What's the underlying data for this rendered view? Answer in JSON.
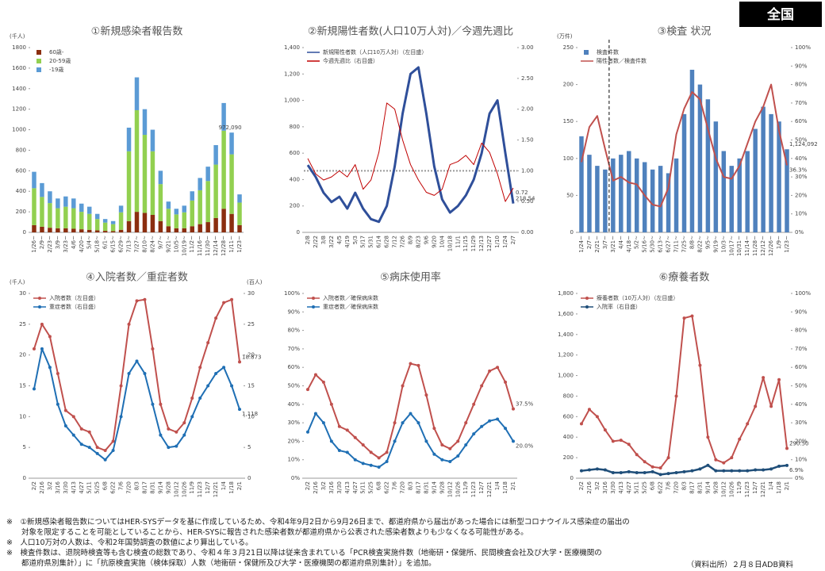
{
  "badge": "全国",
  "chart_data": [
    {
      "type": "bar",
      "stacked": true,
      "title": "①新規感染者報告数",
      "y_unit": "(千人)",
      "categories": [
        "1/26~",
        "2/9~",
        "2/23~",
        "3/9~",
        "3/23~",
        "4/6~",
        "4/20~",
        "5/4~",
        "5/18~",
        "6/1~",
        "6/15~",
        "6/29~",
        "7/13~",
        "7/27~",
        "8/10~",
        "8/24~",
        "9/7~",
        "9/21~",
        "10/5~",
        "10/19~",
        "11/2~",
        "11/16~",
        "11/30~",
        "12/14~",
        "12/28~",
        "1/11~",
        "1/23~"
      ],
      "series": [
        {
          "name": "60歳-",
          "color": "#8b2e0f",
          "values": [
            70,
            55,
            45,
            40,
            40,
            35,
            30,
            25,
            20,
            15,
            12,
            25,
            110,
            200,
            190,
            170,
            110,
            60,
            40,
            40,
            60,
            80,
            100,
            140,
            230,
            180,
            70
          ]
        },
        {
          "name": "20-59歳",
          "color": "#92d050",
          "values": [
            360,
            290,
            240,
            195,
            210,
            200,
            170,
            155,
            110,
            80,
            68,
            170,
            680,
            990,
            760,
            620,
            360,
            170,
            135,
            155,
            250,
            330,
            400,
            520,
            760,
            580,
            220
          ]
        },
        {
          "name": "-19歳",
          "color": "#5b9bd5",
          "values": [
            160,
            135,
            115,
            95,
            100,
            95,
            80,
            70,
            50,
            35,
            30,
            65,
            230,
            320,
            250,
            210,
            130,
            70,
            55,
            65,
            90,
            120,
            140,
            190,
            270,
            212,
            80
          ]
        }
      ],
      "ylim": [
        0,
        1800
      ],
      "yticks": [
        0,
        200,
        400,
        600,
        800,
        1000,
        1200,
        1400,
        1600,
        1800
      ],
      "annotations": [
        "972,090"
      ]
    },
    {
      "type": "line",
      "title": "②新規陽性者数(人口10万人対)／今週先週比",
      "categories": [
        "2/8",
        "2/22",
        "3/8",
        "3/22",
        "4/5",
        "4/19",
        "5/3",
        "5/17",
        "5/31",
        "6/14",
        "6/28",
        "7/12",
        "7/26",
        "8/9",
        "8/23",
        "9/6",
        "9/20",
        "10/4",
        "10/18",
        "11/1",
        "11/15",
        "11/29",
        "12/13",
        "12/27",
        "1/10",
        "1/24",
        "2/7"
      ],
      "series": [
        {
          "name": "新規陽性者数（人口10万人対）（左目盛）",
          "color": "#2f4f9a",
          "width": 3,
          "values": [
            510,
            420,
            300,
            230,
            270,
            180,
            300,
            180,
            100,
            80,
            200,
            500,
            900,
            1200,
            1250,
            900,
            500,
            250,
            150,
            200,
            280,
            400,
            600,
            900,
            1000,
            600,
            218.54
          ]
        },
        {
          "name": "今週先週比（右目盛）",
          "color": "#c00000",
          "width": 1,
          "axis": "y2",
          "values": [
            1.2,
            0.95,
            0.85,
            0.9,
            1.0,
            0.9,
            1.1,
            0.7,
            0.85,
            1.3,
            2.1,
            2.0,
            1.5,
            1.1,
            0.85,
            0.65,
            0.6,
            0.7,
            1.1,
            1.15,
            1.25,
            1.1,
            1.45,
            1.3,
            0.95,
            0.5,
            0.72
          ]
        }
      ],
      "ylim": [
        0,
        1400
      ],
      "yticks": [
        0,
        200,
        400,
        600,
        800,
        {
          "value": 1000,
          "label": "1,000"
        },
        {
          "value": 1200,
          "label": "1,200"
        },
        {
          "value": 1400,
          "label": "1,400"
        }
      ],
      "y2lim": [
        0,
        3
      ],
      "y2ticks": [
        {
          "value": 0,
          "label": "0.00"
        },
        {
          "value": 0.5,
          "label": "0.50"
        },
        {
          "value": 1,
          "label": "1.00"
        },
        {
          "value": 1.5,
          "label": "1.50"
        },
        {
          "value": 2,
          "label": "2.00"
        },
        {
          "value": 2.5,
          "label": "2.50"
        },
        {
          "value": 3,
          "label": "3.00"
        }
      ],
      "hline_y2": 1,
      "annotations": [
        "218.54",
        "0.72"
      ]
    },
    {
      "type": "bar",
      "title": "③検査 状況",
      "y_unit": "(万件)",
      "categories": [
        "1/24~",
        "2/7~",
        "2/21~",
        "3/7~",
        "3/21~",
        "4/4~",
        "4/18~",
        "5/2~",
        "5/16~",
        "5/30~",
        "6/13~",
        "6/27~",
        "7/11~",
        "7/25~",
        "8/8~",
        "8/22~",
        "9/5~",
        "9/19~",
        "10/3~",
        "10/17~",
        "10/31~",
        "11/14~",
        "11/28~",
        "12/12~",
        "12/26~",
        "1/9~",
        "1/23~"
      ],
      "series": [
        {
          "name": "検査件数",
          "color": "#4f81bd",
          "values": [
            130,
            105,
            90,
            85,
            100,
            105,
            110,
            100,
            95,
            85,
            90,
            80,
            100,
            160,
            220,
            200,
            180,
            150,
            110,
            90,
            100,
            110,
            140,
            170,
            160,
            150,
            112.4092
          ]
        },
        {
          "name": "陽性者数／検査件数",
          "type": "line",
          "color": "#c0504d",
          "width": 2,
          "axis": "y2",
          "values": [
            38,
            57,
            63,
            45,
            28,
            30,
            27,
            26,
            20,
            15,
            14,
            24,
            53,
            67,
            76,
            72,
            56,
            40,
            30,
            29,
            36,
            48,
            60,
            68,
            80,
            55,
            36.3
          ]
        }
      ],
      "ylim": [
        0,
        250
      ],
      "yticks": [
        0,
        50,
        100,
        150,
        200,
        250
      ],
      "y2lim": [
        0,
        100
      ],
      "y2ticks": [
        {
          "value": 0,
          "label": "0%"
        },
        {
          "value": 10,
          "label": "10%"
        },
        {
          "value": 20,
          "label": "20%"
        },
        {
          "value": 30,
          "label": "30%"
        },
        {
          "value": 40,
          "label": "40%"
        },
        {
          "value": 50,
          "label": "50%"
        },
        {
          "value": 60,
          "label": "60%"
        },
        {
          "value": 70,
          "label": "70%"
        },
        {
          "value": 80,
          "label": "80%"
        },
        {
          "value": 90,
          "label": "90%"
        },
        {
          "value": 100,
          "label": "100%"
        }
      ],
      "vline_at": "3/21~",
      "annotations": [
        "1,124,092",
        "36.3%"
      ]
    },
    {
      "type": "line",
      "markers": true,
      "title": "④入院者数／重症者数",
      "y_unit": "(千人)",
      "y2_unit": "(百人)",
      "categories": [
        "2/2",
        "2/16",
        "3/2",
        "3/16",
        "3/30",
        "4/13",
        "4/27",
        "5/11",
        "5/25",
        "6/8",
        "6/22",
        "7/6",
        "7/20",
        "8/3",
        "8/17",
        "8/31",
        "9/14",
        "9/28",
        "10/12",
        "10/26",
        "11/9",
        "11/23",
        "12/7",
        "12/21",
        "1/4",
        "1/18",
        "2/1"
      ],
      "series": [
        {
          "name": "入院者数（左目盛）",
          "color": "#c0504d",
          "width": 2,
          "values": [
            21,
            25,
            23,
            17,
            11,
            10,
            8,
            7.5,
            5,
            4.5,
            6,
            15,
            25,
            28.8,
            29,
            21,
            12,
            8,
            7.5,
            9,
            13,
            18,
            22,
            26,
            28.5,
            29,
            18.873
          ]
        },
        {
          "name": "重症者数（右目盛）",
          "color": "#1f6fb4",
          "width": 2,
          "axis": "y2",
          "values": [
            14.5,
            21,
            18,
            12,
            8.5,
            7,
            5.5,
            5,
            4,
            3,
            4.5,
            10,
            17,
            19,
            17,
            12,
            7,
            5,
            5.2,
            7,
            10,
            13,
            15,
            17,
            18,
            15,
            11.18
          ]
        }
      ],
      "ylim": [
        0,
        30
      ],
      "yticks": [
        0,
        5,
        10,
        15,
        20,
        25,
        30
      ],
      "y2lim": [
        0,
        30
      ],
      "y2ticks": [
        0,
        5,
        10,
        15,
        20,
        25,
        30
      ],
      "annotations": [
        "18.873",
        "1,118"
      ]
    },
    {
      "type": "line",
      "markers": true,
      "title": "⑤病床使用率",
      "categories": [
        "2/2",
        "2/16",
        "3/2",
        "3/16",
        "3/30",
        "4/13",
        "4/27",
        "5/11",
        "5/25",
        "6/8",
        "6/22",
        "7/6",
        "7/20",
        "8/3",
        "8/17",
        "8/31",
        "9/14",
        "9/28",
        "10/12",
        "10/26",
        "11/9",
        "11/23",
        "12/7",
        "12/21",
        "1/4",
        "1/18",
        "2/1"
      ],
      "series": [
        {
          "name": "入院者数／確保病床数",
          "color": "#c0504d",
          "width": 2,
          "values": [
            48,
            56,
            52,
            40,
            28,
            26,
            22,
            18,
            14,
            11,
            14,
            30,
            50,
            62,
            61,
            45,
            27,
            18,
            16,
            20,
            30,
            40,
            50,
            58,
            60,
            52,
            37.5
          ]
        },
        {
          "name": "重症者数／確保病床数",
          "color": "#1f6fb4",
          "width": 2,
          "values": [
            25,
            35,
            30,
            20,
            15,
            14,
            10,
            8,
            7,
            6,
            9,
            20,
            30,
            35,
            30,
            20,
            13,
            10,
            9,
            12,
            18,
            24,
            28,
            31,
            32,
            27,
            20
          ]
        }
      ],
      "ylim": [
        0,
        100
      ],
      "yticks": [
        {
          "value": 0,
          "label": "0%"
        },
        {
          "value": 10,
          "label": "10%"
        },
        {
          "value": 20,
          "label": "20%"
        },
        {
          "value": 30,
          "label": "30%"
        },
        {
          "value": 40,
          "label": "40%"
        },
        {
          "value": 50,
          "label": "50%"
        },
        {
          "value": 60,
          "label": "60%"
        },
        {
          "value": 70,
          "label": "70%"
        },
        {
          "value": 80,
          "label": "80%"
        },
        {
          "value": 90,
          "label": "90%"
        },
        {
          "value": 100,
          "label": "100%"
        }
      ],
      "annotations": [
        "37.5%",
        "20.0%"
      ]
    },
    {
      "type": "line",
      "markers": true,
      "title": "⑥療養者数",
      "categories": [
        "2/2",
        "2/16",
        "3/2",
        "3/16",
        "3/30",
        "4/13",
        "4/27",
        "5/11",
        "5/25",
        "6/8",
        "6/22",
        "7/6",
        "7/20",
        "8/3",
        "8/17",
        "8/31",
        "9/14",
        "9/28",
        "10/12",
        "10/26",
        "11/9",
        "11/23",
        "12/7",
        "12/21",
        "1/4",
        "1/18",
        "2/1"
      ],
      "series": [
        {
          "name": "療養者数（10万人対）（左目盛）",
          "color": "#c0504d",
          "width": 2,
          "values": [
            530,
            670,
            600,
            470,
            360,
            370,
            330,
            230,
            160,
            110,
            100,
            200,
            800,
            1560,
            1580,
            1100,
            400,
            180,
            150,
            200,
            380,
            530,
            700,
            980,
            700,
            960,
            290.5
          ]
        },
        {
          "name": "入院率（右目盛）",
          "color": "#1f4e79",
          "width": 2.5,
          "axis": "y2",
          "values": [
            4,
            4.5,
            5,
            4.5,
            3,
            3,
            3.5,
            3,
            3,
            3.5,
            2,
            2.5,
            3,
            3.5,
            4,
            5,
            7,
            4,
            4,
            4,
            4,
            4,
            4.5,
            4.5,
            5,
            6.5,
            6.9
          ]
        }
      ],
      "ylim": [
        0,
        1800
      ],
      "yticks": [
        0,
        200,
        400,
        600,
        800,
        {
          "value": 1000,
          "label": "1,000"
        },
        {
          "value": 1200,
          "label": "1,200"
        },
        {
          "value": 1400,
          "label": "1,400"
        },
        {
          "value": 1600,
          "label": "1,600"
        },
        {
          "value": 1800,
          "label": "1,800"
        }
      ],
      "y2lim": [
        0,
        100
      ],
      "y2ticks": [
        {
          "value": 0,
          "label": "0%"
        },
        {
          "value": 10,
          "label": "10%"
        },
        {
          "value": 20,
          "label": "20%"
        },
        {
          "value": 30,
          "label": "30%"
        },
        {
          "value": 40,
          "label": "40%"
        },
        {
          "value": 50,
          "label": "50%"
        },
        {
          "value": 60,
          "label": "60%"
        },
        {
          "value": 70,
          "label": "70%"
        },
        {
          "value": 80,
          "label": "80%"
        },
        {
          "value": 90,
          "label": "90%"
        },
        {
          "value": 100,
          "label": "100%"
        }
      ],
      "annotations": [
        "290.50",
        "6.9%"
      ]
    }
  ],
  "notes": [
    "※　①新規感染者報告数についてはHER-SYSデータを基に作成しているため、令和4年9月2日から9月26日まで、都道府県から届出があった場合には新型コロナウイルス感染症の届出の",
    "　　対象を限定することを可能としていることから、HER-SYSに報告された感染者数が都道府県から公表された感染者数よりも少なくなる可能性がある。",
    "※　人口10万対の人数は、令和2年国勢調査の数値により算出している。",
    "※　検査件数は、退院時検査等も含む検査の総数であり、令和４年３月21日以降は従来含まれている「PCR検査実施件数（地衛研・保健所、民間検査会社及び大学・医療機関の",
    "　　都道府県別集計）」に「抗原検査実施（検体採取）人数（地衛研・保健所及び大学・医療機関の都道府県別集計）」を追加。"
  ],
  "source": "（資料出所）２月８日ADB資料"
}
